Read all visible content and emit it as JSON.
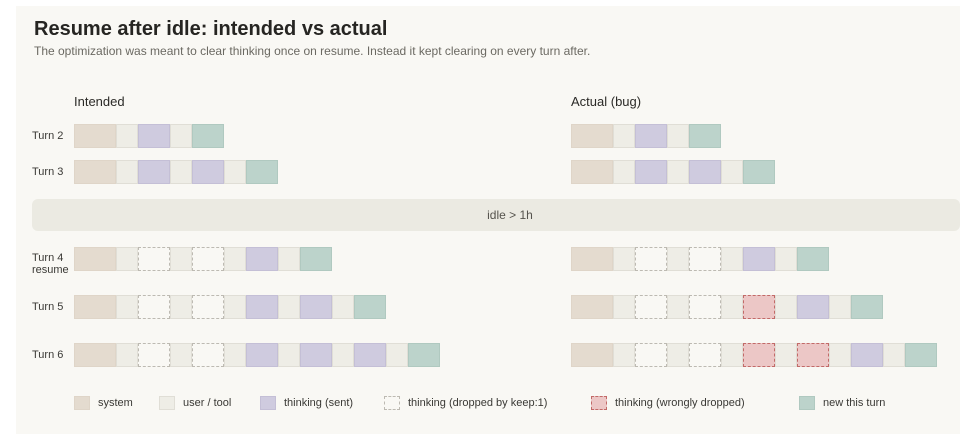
{
  "title": "Resume after idle: intended vs actual",
  "subtitle": "The optimization was meant to clear thinking once on resume. Instead it kept clearing on every turn after.",
  "columns": {
    "intended": "Intended",
    "actual": "Actual (bug)"
  },
  "idle_label": "idle > 1h",
  "turns": [
    {
      "label": "Turn 2",
      "intended": [
        "system",
        "user",
        "sent",
        "user",
        "new"
      ],
      "actual": [
        "system",
        "user",
        "sent",
        "user",
        "new"
      ]
    },
    {
      "label": "Turn 3",
      "intended": [
        "system",
        "user",
        "sent",
        "user",
        "sent",
        "user",
        "new"
      ],
      "actual": [
        "system",
        "user",
        "sent",
        "user",
        "sent",
        "user",
        "new"
      ]
    },
    {
      "label": "Turn 4 resume",
      "intended": [
        "system",
        "user",
        "dropped",
        "user",
        "dropped",
        "user",
        "sent",
        "user",
        "new"
      ],
      "actual": [
        "system",
        "user",
        "dropped",
        "user",
        "dropped",
        "user",
        "sent",
        "user",
        "new"
      ]
    },
    {
      "label": "Turn 5",
      "intended": [
        "system",
        "user",
        "dropped",
        "user",
        "dropped",
        "user",
        "sent",
        "user",
        "sent",
        "user",
        "new"
      ],
      "actual": [
        "system",
        "user",
        "dropped",
        "user",
        "dropped",
        "user",
        "wrong",
        "user",
        "sent",
        "user",
        "new"
      ]
    },
    {
      "label": "Turn 6",
      "intended": [
        "system",
        "user",
        "dropped",
        "user",
        "dropped",
        "user",
        "sent",
        "user",
        "sent",
        "user",
        "sent",
        "user",
        "new"
      ],
      "actual": [
        "system",
        "user",
        "dropped",
        "user",
        "dropped",
        "user",
        "wrong",
        "user",
        "wrong",
        "user",
        "sent",
        "user",
        "new"
      ]
    }
  ],
  "legend": [
    {
      "kind": "system",
      "label": "system"
    },
    {
      "kind": "user",
      "label": "user / tool"
    },
    {
      "kind": "sent",
      "label": "thinking (sent)"
    },
    {
      "kind": "dropped",
      "label": "thinking (dropped by keep:1)"
    },
    {
      "kind": "wrong",
      "label": "thinking (wrongly dropped)"
    },
    {
      "kind": "new",
      "label": "new this turn"
    }
  ],
  "colors": {
    "system": "#e4dbcf",
    "user": "#eeede6",
    "thinking_sent": "#cfcbdf",
    "thinking_dropped_border": "#bdbab2",
    "thinking_wrong": "#ecc7c6",
    "new_this_turn": "#bcd3cb"
  }
}
